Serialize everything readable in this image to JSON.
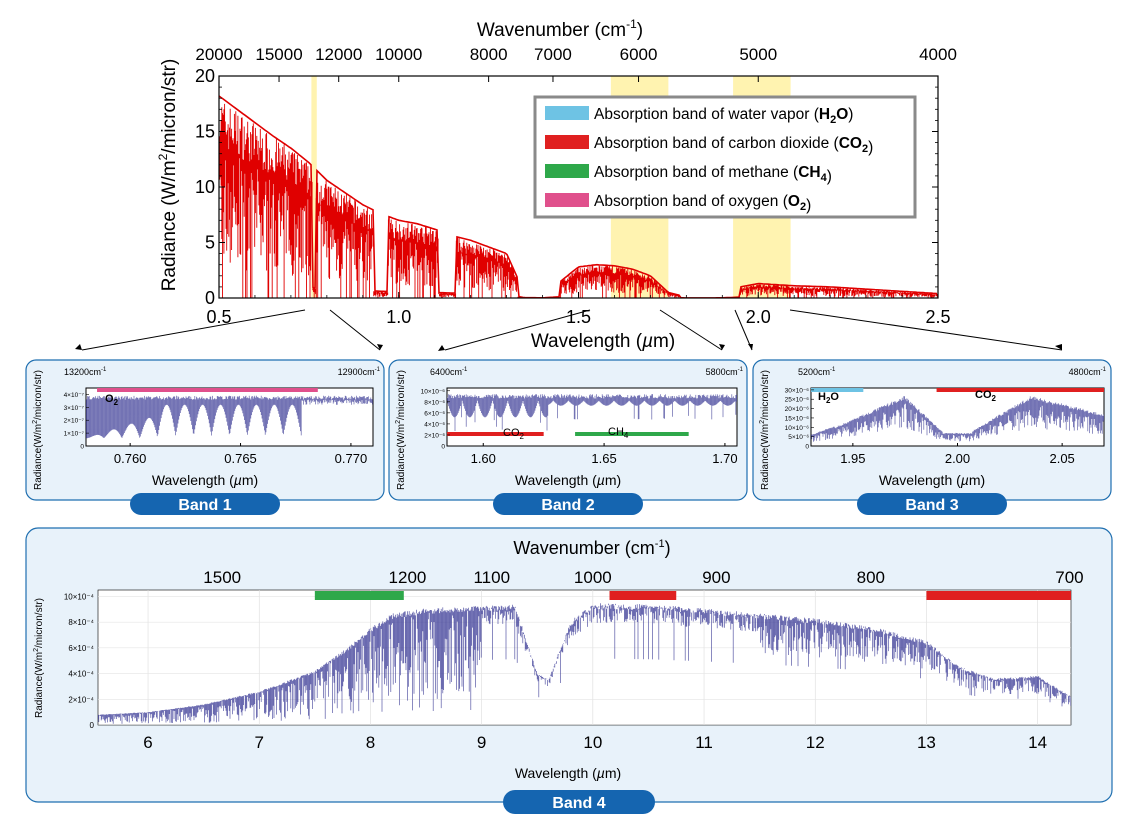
{
  "colors": {
    "spectrum_main": "#e00000",
    "spectrum_band": "#3c3c96",
    "highlight": "#fff3b0",
    "panel_bg": "#e8f2fa",
    "panel_border": "#1f6fb0",
    "tag_bg": "#1565b0",
    "h2o": "#6ec3e4",
    "co2": "#e02020",
    "ch4": "#2ea84a",
    "o2": "#e0508c"
  },
  "chart_data": [
    {
      "type": "line",
      "id": "main",
      "ylabel_parts": [
        "Radiance (W/m",
        "2",
        "/micron/str)"
      ],
      "xlabel_parts": [
        "Wavelength  (",
        "µ",
        "m)"
      ],
      "top_axis_label_parts": [
        "Wavenumber  (cm",
        "-1",
        ")"
      ],
      "xlim": [
        0.5,
        2.5
      ],
      "ylim": [
        0,
        20
      ],
      "x_ticks": [
        "0.5",
        "1.0",
        "1.5",
        "2.0",
        "2.5"
      ],
      "x_tick_values": [
        0.5,
        1.0,
        1.5,
        2.0,
        2.5
      ],
      "y_ticks": [
        "0",
        "5",
        "10",
        "15",
        "20"
      ],
      "y_tick_values": [
        0,
        5,
        10,
        15,
        20
      ],
      "top_ticks": [
        "20000",
        "15000",
        "12000",
        "10000",
        "8000",
        "7000",
        "6000",
        "5000",
        "4000"
      ],
      "top_tick_wavelengths": [
        0.5,
        0.667,
        0.833,
        1.0,
        1.25,
        1.429,
        1.667,
        2.0,
        2.5
      ],
      "highlight_ranges": [
        [
          0.757,
          0.772
        ],
        [
          1.59,
          1.75
        ],
        [
          1.93,
          2.09
        ]
      ],
      "legend": [
        {
          "label": "Absorption band of water vapor (",
          "formula": "H",
          "sub": "2",
          "tail": "O",
          "close": ")",
          "color": "#6ec3e4"
        },
        {
          "label": "Absorption band of carbon dioxide (",
          "formula": "CO",
          "sub": "2",
          "tail": "",
          "close": ")",
          "color": "#e02020"
        },
        {
          "label": "Absorption band of methane (",
          "formula": "CH",
          "sub": "4",
          "tail": "",
          "close": ")",
          "color": "#2ea84a"
        },
        {
          "label": "Absorption band of oxygen (",
          "formula": "O",
          "sub": "2",
          "tail": "",
          "close": ")",
          "color": "#e0508c"
        }
      ],
      "envelope": {
        "x": [
          0.5,
          0.55,
          0.6,
          0.65,
          0.7,
          0.75,
          0.8,
          0.85,
          0.9,
          0.95,
          1.0,
          1.05,
          1.1,
          1.15,
          1.2,
          1.25,
          1.3,
          1.35,
          1.4,
          1.45,
          1.5,
          1.55,
          1.6,
          1.65,
          1.7,
          1.75,
          1.8,
          1.85,
          1.9,
          1.95,
          2.0,
          2.05,
          2.1,
          2.2,
          2.3,
          2.4,
          2.5
        ],
        "y": [
          18.2,
          17.0,
          15.8,
          14.6,
          13.5,
          12.2,
          10.6,
          9.5,
          8.4,
          7.6,
          7.0,
          6.7,
          6.2,
          5.6,
          5.2,
          4.6,
          4.0,
          0.4,
          0.2,
          1.5,
          2.8,
          3.0,
          2.9,
          2.6,
          2.0,
          0.5,
          0.1,
          0.1,
          0.2,
          1.0,
          1.3,
          1.2,
          1.1,
          1.0,
          0.8,
          0.6,
          0.4
        ]
      },
      "gaps": [
        [
          0.76,
          0.77
        ],
        [
          0.93,
          0.97
        ],
        [
          1.11,
          1.16
        ],
        [
          1.33,
          1.45
        ],
        [
          1.78,
          1.95
        ]
      ]
    },
    {
      "type": "line",
      "id": "band1",
      "title": "Band 1",
      "left_wavenumber_parts": [
        "13200cm",
        "-1"
      ],
      "right_wavenumber_parts": [
        "12900cm",
        "-1"
      ],
      "ylabel_parts": [
        "Radiance(W/m",
        "2",
        "/micron/str)"
      ],
      "xlabel_parts": [
        "Wavelength (",
        "µ",
        "m)"
      ],
      "xlim": [
        0.758,
        0.771
      ],
      "x_ticks": [
        "0.760",
        "0.765",
        "0.770"
      ],
      "x_tick_values": [
        0.76,
        0.765,
        0.77
      ],
      "y_ticks": [
        "0",
        "1×10⁻⁷",
        "2×10⁻⁷",
        "3×10⁻⁷",
        "4×10⁻⁷"
      ],
      "y_tick_values": [
        0,
        1,
        2,
        3,
        4
      ],
      "ylim": [
        0,
        4.5
      ],
      "gas_labels": [
        {
          "base": "O",
          "sub": "2"
        }
      ],
      "gas_bars": [
        {
          "x0": 0.7585,
          "x1": 0.7685,
          "color": "#e0508c"
        }
      ]
    },
    {
      "type": "line",
      "id": "band2",
      "title": "Band 2",
      "left_wavenumber_parts": [
        "6400cm",
        "-1"
      ],
      "right_wavenumber_parts": [
        "5800cm",
        "-1"
      ],
      "ylabel_parts": [
        "Radiance(W/m",
        "2",
        "/micron/str)"
      ],
      "xlabel_parts": [
        "Wavelength (",
        "µ",
        "m)"
      ],
      "xlim": [
        1.585,
        1.705
      ],
      "x_ticks": [
        "1.60",
        "1.65",
        "1.70"
      ],
      "x_tick_values": [
        1.6,
        1.65,
        1.7
      ],
      "y_ticks": [
        "0",
        "2×10⁻⁶",
        "4×10⁻⁶",
        "6×10⁻⁶",
        "8×10⁻⁶",
        "10×10⁻⁶"
      ],
      "y_tick_values": [
        0,
        2,
        4,
        6,
        8,
        10
      ],
      "ylim": [
        0,
        10.5
      ],
      "gas_labels": [
        {
          "base": "CO",
          "sub": "2"
        },
        {
          "base": "CH",
          "sub": "4"
        }
      ],
      "gas_bars": [
        {
          "x0": 1.585,
          "x1": 1.625,
          "color": "#e02020"
        },
        {
          "x0": 1.638,
          "x1": 1.685,
          "color": "#2ea84a"
        }
      ]
    },
    {
      "type": "line",
      "id": "band3",
      "title": "Band 3",
      "left_wavenumber_parts": [
        "5200cm",
        "-1"
      ],
      "right_wavenumber_parts": [
        "4800cm",
        "-1"
      ],
      "ylabel_parts": [
        "Radiance(W/m",
        "2",
        "/micron/str)"
      ],
      "xlabel_parts": [
        "Wavelength (",
        "µ",
        "m)"
      ],
      "xlim": [
        1.93,
        2.07
      ],
      "x_ticks": [
        "1.95",
        "2.00",
        "2.05"
      ],
      "x_tick_values": [
        1.95,
        2.0,
        2.05
      ],
      "y_ticks": [
        "0",
        "5×10⁻⁶",
        "10×10⁻⁶",
        "15×10⁻⁶",
        "20×10⁻⁶",
        "25×10⁻⁶",
        "30×10⁻⁶"
      ],
      "y_tick_values": [
        0,
        5,
        10,
        15,
        20,
        25,
        30
      ],
      "ylim": [
        0,
        31
      ],
      "gas_labels": [
        {
          "base": "H",
          "sub": "2",
          "tail": "O"
        },
        {
          "base": "CO",
          "sub": "2"
        }
      ],
      "gas_bars": [
        {
          "x0": 1.93,
          "x1": 1.955,
          "color": "#6ec3e4"
        },
        {
          "x0": 1.99,
          "x1": 2.07,
          "color": "#e02020"
        }
      ]
    },
    {
      "type": "line",
      "id": "band4",
      "title": "Band 4",
      "top_axis_label_parts": [
        "Wavenumber  (cm",
        "-1",
        ")"
      ],
      "top_ticks": [
        "1500",
        "1200",
        "1100",
        "1000",
        "900",
        "800",
        "700"
      ],
      "top_tick_wavelengths": [
        6.667,
        8.333,
        9.091,
        10.0,
        11.111,
        12.5,
        14.286
      ],
      "ylabel_parts": [
        "Radiance(W/m",
        "2",
        "/micron/str)"
      ],
      "xlabel_parts": [
        "Wavelength (",
        "µ",
        "m)"
      ],
      "xlim": [
        5.55,
        14.3
      ],
      "x_ticks": [
        "6",
        "7",
        "8",
        "9",
        "10",
        "11",
        "12",
        "13",
        "14"
      ],
      "x_tick_values": [
        6,
        7,
        8,
        9,
        10,
        11,
        12,
        13,
        14
      ],
      "y_ticks": [
        "0",
        "2×10⁻⁴",
        "4×10⁻⁴",
        "6×10⁻⁴",
        "8×10⁻⁴",
        "10×10⁻⁴"
      ],
      "y_tick_values": [
        0,
        2,
        4,
        6,
        8,
        10
      ],
      "ylim": [
        0,
        10.5
      ],
      "gas_bars": [
        {
          "x0": 7.5,
          "x1": 8.3,
          "color": "#2ea84a"
        },
        {
          "x0": 10.15,
          "x1": 10.75,
          "color": "#e02020"
        },
        {
          "x0": 13.0,
          "x1": 14.3,
          "color": "#e02020"
        }
      ],
      "envelope": {
        "x": [
          5.55,
          6.0,
          6.5,
          7.0,
          7.5,
          7.8,
          8.0,
          8.2,
          8.5,
          9.0,
          9.3,
          9.5,
          9.6,
          9.8,
          10.0,
          10.5,
          11.0,
          11.5,
          12.0,
          12.5,
          13.0,
          13.3,
          13.6,
          14.0,
          14.3
        ],
        "y": [
          0.8,
          1.0,
          1.6,
          2.6,
          4.2,
          6.0,
          7.5,
          8.6,
          9.0,
          9.2,
          9.3,
          4.0,
          3.5,
          8.0,
          9.4,
          9.3,
          9.0,
          8.6,
          8.2,
          7.6,
          6.5,
          4.5,
          3.6,
          3.8,
          2.2
        ]
      }
    }
  ]
}
